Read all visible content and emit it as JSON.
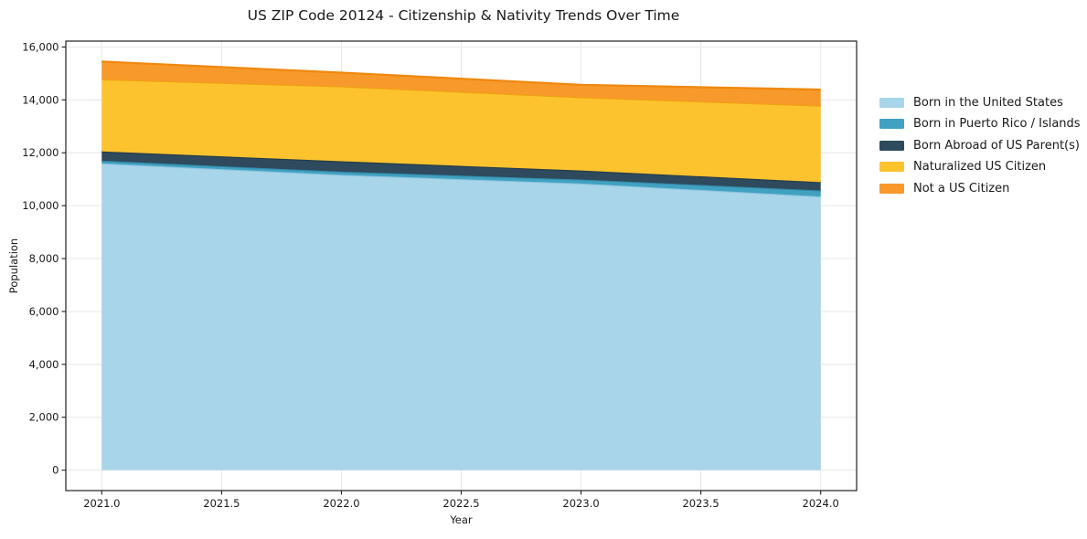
{
  "chart": {
    "title": "US ZIP Code 20124 - Citizenship & Nativity Trends Over Time",
    "xlabel": "Year",
    "ylabel": "Population"
  },
  "chart_data": {
    "type": "area",
    "stacked": true,
    "title": "US ZIP Code 20124 - Citizenship & Nativity Trends Over Time",
    "xlabel": "Year",
    "ylabel": "Population",
    "x": [
      2021,
      2022,
      2023,
      2024
    ],
    "series": [
      {
        "name": "Born in the United States",
        "fill": "#a8d5e9",
        "edge": "#8cc4de",
        "values": [
          11600,
          11165,
          10840,
          10350
        ]
      },
      {
        "name": "Born in Puerto Rico / Islands",
        "fill": "#41a1c1",
        "edge": "#338bab",
        "values": [
          100,
          120,
          150,
          225
        ]
      },
      {
        "name": "Born Abroad of US Parent(s)",
        "fill": "#2e4a5c",
        "edge": "#243b4a",
        "values": [
          350,
          395,
          340,
          315
        ]
      },
      {
        "name": "Naturalized US Citizen",
        "fill": "#fcc32e",
        "edge": "#efa112",
        "values": [
          2730,
          2830,
          2770,
          2890
        ]
      },
      {
        "name": "Not a US Citizen",
        "fill": "#f8992b",
        "edge": "#ef8810",
        "values": [
          670,
          520,
          470,
          610
        ]
      }
    ],
    "stack_totals": [
      15450,
      15030,
      14570,
      14390
    ],
    "xlim": [
      2020.85,
      2024.15
    ],
    "ylim": [
      -772,
      16222
    ],
    "xticks": {
      "values": [
        2021.0,
        2021.5,
        2022.0,
        2022.5,
        2023.0,
        2023.5,
        2024.0
      ],
      "labels": [
        "2021.0",
        "2021.5",
        "2022.0",
        "2022.5",
        "2023.0",
        "2023.5",
        "2024.0"
      ]
    },
    "yticks": {
      "values": [
        0,
        2000,
        4000,
        6000,
        8000,
        10000,
        12000,
        14000,
        16000
      ],
      "labels": [
        "0",
        "2,000",
        "4,000",
        "6,000",
        "8,000",
        "10,000",
        "12,000",
        "14,000",
        "16,000"
      ]
    },
    "grid": true,
    "legend_position": "right-outside"
  }
}
